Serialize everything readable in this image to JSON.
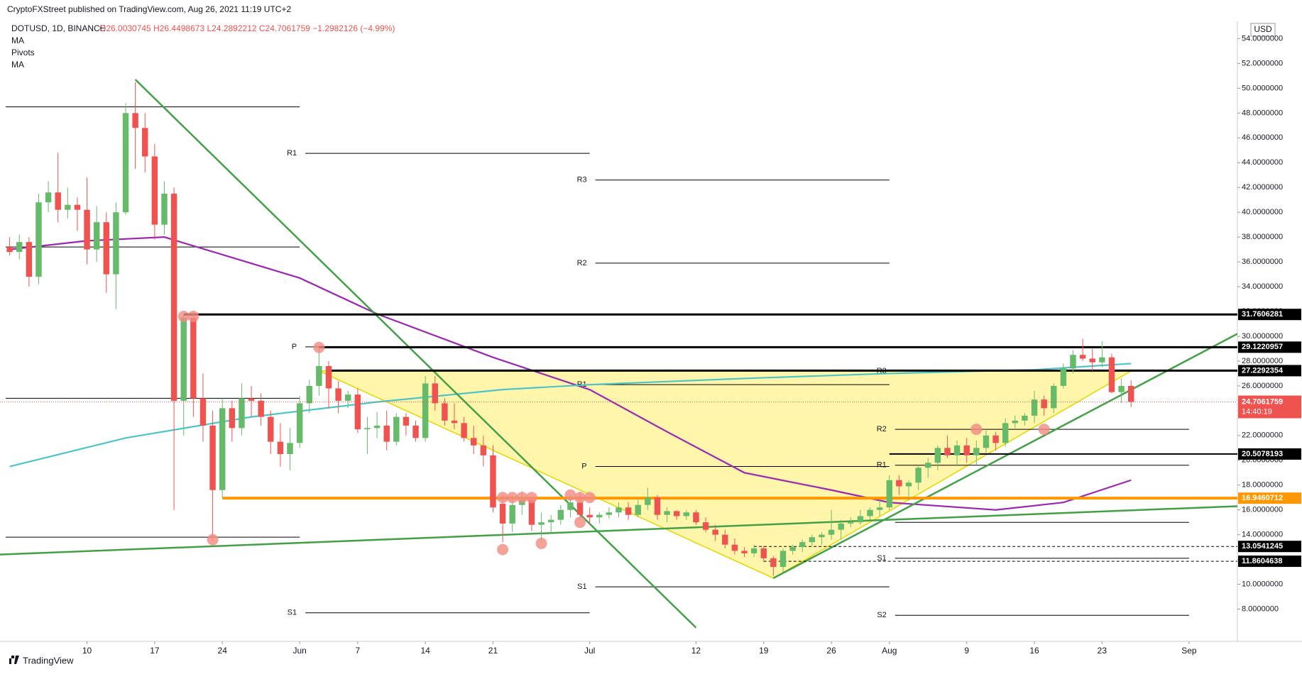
{
  "header": {
    "published": "CryptoFXStreet published on TradingView.com, Aug 26, 2021 11:19 UTC+2",
    "symbol": "DOTUSD, 1D, BINANCE",
    "legend_values": "O26.0030745 H26.4498673 L24.2892212 C24.7061759 −1.2982126 (−4.99%)",
    "indicators": [
      "MA",
      "Pivots",
      "MA"
    ],
    "currency": "USD",
    "brand": "TradingView"
  },
  "chart_data": {
    "type": "candlestick",
    "start": "2021-05-02",
    "up_color": "#66bb6a",
    "down_color": "#ef5350",
    "candles": [
      [
        37.2,
        38.0,
        36.5,
        36.8
      ],
      [
        36.8,
        38.2,
        36.2,
        37.6
      ],
      [
        37.6,
        38.0,
        34.0,
        34.8
      ],
      [
        34.8,
        41.5,
        34.2,
        40.8
      ],
      [
        40.8,
        42.5,
        40.0,
        41.6
      ],
      [
        41.6,
        44.8,
        39.2,
        40.2
      ],
      [
        40.2,
        42.0,
        39.5,
        40.6
      ],
      [
        40.6,
        41.2,
        38.5,
        40.2
      ],
      [
        40.2,
        42.8,
        35.8,
        37.0
      ],
      [
        37.0,
        40.5,
        36.0,
        39.2
      ],
      [
        39.2,
        40.0,
        33.5,
        35.0
      ],
      [
        35.0,
        40.8,
        32.2,
        40.0
      ],
      [
        40.0,
        48.8,
        39.8,
        48.0
      ],
      [
        48.0,
        50.5,
        43.5,
        46.8
      ],
      [
        46.8,
        48.0,
        43.2,
        44.5
      ],
      [
        44.5,
        45.5,
        37.8,
        39.0
      ],
      [
        39.0,
        42.5,
        38.2,
        41.5
      ],
      [
        41.5,
        42.0,
        16.0,
        24.8
      ],
      [
        24.8,
        31.8,
        22.0,
        31.5
      ],
      [
        31.5,
        32.0,
        23.5,
        25.0
      ],
      [
        25.0,
        27.0,
        21.5,
        22.8
      ],
      [
        22.8,
        24.0,
        13.5,
        17.6
      ],
      [
        17.6,
        25.0,
        17.0,
        24.2
      ],
      [
        24.2,
        24.8,
        21.5,
        22.6
      ],
      [
        22.6,
        26.2,
        22.0,
        25.0
      ],
      [
        25.0,
        26.0,
        23.5,
        24.8
      ],
      [
        24.8,
        25.4,
        22.8,
        23.5
      ],
      [
        23.5,
        24.0,
        20.5,
        21.5
      ],
      [
        21.5,
        23.0,
        19.5,
        20.5
      ],
      [
        20.5,
        22.6,
        19.2,
        21.4
      ],
      [
        21.4,
        25.2,
        21.0,
        24.6
      ],
      [
        24.6,
        26.5,
        23.8,
        26.0
      ],
      [
        26.0,
        29.0,
        25.2,
        27.6
      ],
      [
        27.6,
        28.0,
        24.2,
        25.8
      ],
      [
        25.8,
        26.4,
        23.8,
        24.8
      ],
      [
        24.8,
        25.6,
        24.2,
        25.3
      ],
      [
        25.3,
        25.8,
        22.2,
        22.5
      ],
      [
        22.5,
        23.5,
        20.5,
        22.6
      ],
      [
        22.6,
        23.9,
        21.8,
        22.8
      ],
      [
        22.8,
        24.0,
        20.8,
        21.5
      ],
      [
        21.5,
        23.8,
        21.2,
        23.5
      ],
      [
        23.5,
        23.8,
        22.0,
        22.8
      ],
      [
        22.8,
        23.2,
        21.5,
        21.8
      ],
      [
        21.8,
        26.8,
        21.5,
        26.2
      ],
      [
        26.2,
        26.8,
        24.0,
        24.6
      ],
      [
        24.6,
        25.0,
        22.8,
        23.2
      ],
      [
        23.2,
        24.6,
        22.5,
        23.0
      ],
      [
        23.0,
        23.5,
        21.5,
        21.8
      ],
      [
        21.8,
        22.8,
        20.5,
        21.2
      ],
      [
        21.2,
        22.0,
        19.5,
        20.4
      ],
      [
        20.4,
        21.2,
        15.8,
        16.2
      ],
      [
        16.5,
        17.2,
        13.4,
        14.9
      ],
      [
        14.9,
        17.2,
        14.2,
        16.4
      ],
      [
        16.4,
        17.5,
        15.6,
        16.8
      ],
      [
        16.8,
        17.0,
        14.3,
        14.8
      ],
      [
        14.8,
        15.8,
        13.4,
        15.0
      ],
      [
        15.0,
        15.6,
        14.2,
        15.2
      ],
      [
        15.2,
        16.4,
        14.8,
        16.0
      ],
      [
        16.0,
        17.2,
        15.4,
        16.6
      ],
      [
        16.6,
        17.4,
        15.2,
        15.6
      ],
      [
        15.6,
        16.2,
        14.8,
        15.4
      ],
      [
        15.4,
        15.8,
        14.9,
        15.6
      ],
      [
        15.6,
        16.2,
        15.3,
        15.8
      ],
      [
        15.8,
        16.6,
        15.4,
        16.2
      ],
      [
        16.2,
        16.6,
        15.2,
        15.6
      ],
      [
        15.6,
        16.8,
        15.4,
        16.4
      ],
      [
        16.4,
        17.8,
        16.0,
        17.0
      ],
      [
        17.0,
        17.2,
        15.2,
        15.6
      ],
      [
        15.6,
        16.2,
        15.0,
        15.9
      ],
      [
        15.9,
        16.0,
        15.2,
        15.5
      ],
      [
        15.5,
        16.0,
        15.2,
        15.8
      ],
      [
        15.8,
        16.0,
        14.8,
        15.0
      ],
      [
        15.0,
        15.4,
        14.2,
        14.4
      ],
      [
        14.4,
        14.8,
        13.5,
        14.0
      ],
      [
        14.0,
        14.4,
        12.9,
        13.2
      ],
      [
        13.2,
        13.7,
        12.4,
        12.7
      ],
      [
        12.7,
        13.0,
        12.2,
        12.5
      ],
      [
        12.5,
        13.2,
        12.2,
        12.9
      ],
      [
        12.9,
        13.1,
        11.8,
        12.1
      ],
      [
        12.1,
        12.3,
        10.7,
        11.4
      ],
      [
        11.4,
        12.9,
        11.0,
        12.7
      ],
      [
        12.7,
        13.2,
        12.4,
        13.0
      ],
      [
        13.0,
        13.6,
        12.6,
        13.4
      ],
      [
        13.4,
        14.0,
        13.1,
        13.8
      ],
      [
        13.8,
        14.2,
        13.2,
        14.0
      ],
      [
        14.0,
        16.0,
        13.6,
        14.4
      ],
      [
        14.4,
        15.2,
        13.6,
        14.9
      ],
      [
        14.9,
        15.4,
        14.6,
        15.0
      ],
      [
        15.0,
        16.0,
        14.8,
        15.5
      ],
      [
        15.5,
        16.2,
        15.2,
        16.0
      ],
      [
        16.0,
        16.8,
        15.5,
        16.2
      ],
      [
        16.2,
        18.8,
        16.0,
        18.4
      ],
      [
        18.4,
        18.8,
        17.2,
        17.9
      ],
      [
        17.9,
        18.4,
        16.8,
        18.2
      ],
      [
        18.2,
        19.6,
        17.6,
        19.4
      ],
      [
        19.4,
        20.2,
        18.6,
        19.8
      ],
      [
        19.8,
        21.2,
        19.2,
        21.0
      ],
      [
        21.0,
        22.0,
        20.2,
        20.4
      ],
      [
        20.4,
        21.6,
        19.6,
        21.2
      ],
      [
        21.2,
        21.8,
        19.8,
        20.4
      ],
      [
        20.4,
        21.6,
        19.6,
        21.0
      ],
      [
        21.0,
        22.4,
        20.6,
        22.0
      ],
      [
        22.0,
        22.3,
        20.8,
        21.4
      ],
      [
        21.4,
        23.4,
        21.1,
        23.0
      ],
      [
        23.0,
        23.6,
        22.6,
        23.2
      ],
      [
        23.2,
        23.8,
        22.8,
        23.6
      ],
      [
        23.6,
        25.6,
        23.0,
        24.9
      ],
      [
        24.9,
        25.2,
        23.6,
        24.2
      ],
      [
        24.2,
        26.2,
        23.8,
        26.0
      ],
      [
        26.0,
        27.8,
        25.8,
        27.4
      ],
      [
        27.4,
        28.9,
        27.0,
        28.5
      ],
      [
        28.5,
        29.8,
        28.0,
        28.2
      ],
      [
        28.2,
        29.0,
        27.2,
        27.9
      ],
      [
        27.9,
        29.6,
        27.5,
        28.3
      ],
      [
        28.3,
        28.6,
        25.4,
        25.5
      ],
      [
        25.5,
        26.6,
        24.6,
        26.0
      ],
      [
        26.0030745,
        26.4498673,
        24.2892212,
        24.7061759
      ]
    ],
    "moving_averages": [
      {
        "color": "#9c27b0",
        "x": [
          "2021-05-02",
          "2021-05-10",
          "2021-05-18",
          "2021-06-01",
          "2021-06-09",
          "2021-06-21",
          "2021-07-01",
          "2021-07-09",
          "2021-07-17",
          "2021-07-26",
          "2021-08-01",
          "2021-08-12",
          "2021-08-19",
          "2021-08-26"
        ],
        "values": [
          37.0,
          37.7,
          38.0,
          34.7,
          31.8,
          28.3,
          25.7,
          22.3,
          19.0,
          17.6,
          16.6,
          16.0,
          16.6,
          18.4
        ]
      },
      {
        "color": "#4dc4c8",
        "x": [
          "2021-05-02",
          "2021-05-14",
          "2021-05-27",
          "2021-06-09",
          "2021-06-22",
          "2021-07-01",
          "2021-07-17",
          "2021-08-01",
          "2021-08-16",
          "2021-08-26"
        ],
        "values": [
          19.5,
          21.8,
          23.5,
          24.7,
          25.7,
          26.1,
          26.6,
          27.0,
          27.3,
          27.8
        ]
      }
    ],
    "pivots": [
      {
        "value": 48.5,
        "from": "2021-05-01",
        "to": "2021-06-01"
      },
      {
        "value": 37.2,
        "from": "2021-05-01",
        "to": "2021-06-01"
      },
      {
        "value": 25.0,
        "from": "2021-05-01",
        "to": "2021-06-01"
      },
      {
        "value": 13.8,
        "from": "2021-05-01",
        "to": "2021-06-01"
      },
      {
        "label": "R1",
        "value": 44.75,
        "from": "2021-06-01",
        "to": "2021-07-01"
      },
      {
        "label": "P",
        "value": 29.15,
        "from": "2021-06-01",
        "to": "2021-07-01"
      },
      {
        "label": "S1",
        "value": 7.7,
        "from": "2021-06-01",
        "to": "2021-07-01"
      },
      {
        "label": "R3",
        "value": 42.6,
        "from": "2021-07-01",
        "to": "2021-08-01"
      },
      {
        "label": "R2",
        "value": 35.9,
        "from": "2021-07-01",
        "to": "2021-08-01"
      },
      {
        "label": "R1",
        "value": 26.1,
        "from": "2021-07-01",
        "to": "2021-08-01"
      },
      {
        "label": "P",
        "value": 19.5,
        "from": "2021-07-01",
        "to": "2021-08-01"
      },
      {
        "label": "S1",
        "value": 9.8,
        "from": "2021-07-01",
        "to": "2021-08-01"
      },
      {
        "label": "R3",
        "value": 27.2,
        "from": "2021-08-01",
        "to": "2021-09-01"
      },
      {
        "label": "R2",
        "value": 22.5,
        "from": "2021-08-01",
        "to": "2021-09-01"
      },
      {
        "label": "R1",
        "value": 19.6,
        "from": "2021-08-01",
        "to": "2021-09-01"
      },
      {
        "value": 15.0,
        "from": "2021-08-01",
        "to": "2021-09-01"
      },
      {
        "label": "S1",
        "value": 12.1,
        "from": "2021-08-01",
        "to": "2021-09-01"
      },
      {
        "label": "S2",
        "value": 7.5,
        "from": "2021-08-01",
        "to": "2021-09-01"
      }
    ],
    "levels": [
      {
        "value": 31.7606281,
        "from": "2021-05-20",
        "color": "#000000",
        "width": 3
      },
      {
        "value": 29.1220957,
        "from": "2021-06-03",
        "color": "#000000",
        "width": 3
      },
      {
        "value": 27.2292354,
        "from": "2021-06-04",
        "color": "#000000",
        "width": 3
      },
      {
        "value": 20.5078193,
        "from": "2021-08-01",
        "color": "#000000",
        "width": 2
      },
      {
        "value": 16.9460712,
        "from": "2021-05-24",
        "color": "#ff9800",
        "width": 4
      },
      {
        "value": 13.0541245,
        "from": "2021-07-18",
        "color": "#000000",
        "width": 1,
        "dashed": true
      },
      {
        "value": 11.8604638,
        "from": "2021-07-19",
        "color": "#000000",
        "width": 1,
        "dashed": true
      }
    ],
    "trendlines": [
      {
        "color": "#43a047",
        "points": [
          [
            "2021-05-15",
            50.7
          ],
          [
            "2021-07-12",
            6.5
          ]
        ]
      },
      {
        "color": "#43a047",
        "points": [
          [
            "2021-05-01",
            12.4
          ],
          [
            "2021-09-06",
            16.3
          ]
        ]
      },
      {
        "color": "#43a047",
        "points": [
          [
            "2021-07-20",
            10.5
          ],
          [
            "2021-09-06",
            30.2
          ]
        ]
      }
    ],
    "triangle": {
      "fill": "#fff59d",
      "stroke": "#e6d600",
      "points": [
        [
          "2021-06-03",
          27.2
        ],
        [
          "2021-07-20",
          10.5
        ],
        [
          "2021-08-26",
          27.2
        ]
      ]
    },
    "markers": [
      [
        "2021-05-20",
        31.6
      ],
      [
        "2021-05-21",
        31.6
      ],
      [
        "2021-05-23",
        13.6
      ],
      [
        "2021-06-03",
        29.1
      ],
      [
        "2021-06-22",
        17.0
      ],
      [
        "2021-06-23",
        17.0
      ],
      [
        "2021-06-24",
        17.0
      ],
      [
        "2021-06-25",
        17.0
      ],
      [
        "2021-06-22",
        12.8
      ],
      [
        "2021-06-26",
        13.3
      ],
      [
        "2021-06-29",
        17.2
      ],
      [
        "2021-06-30",
        17.0
      ],
      [
        "2021-07-01",
        17.0
      ],
      [
        "2021-06-30",
        15.0
      ],
      [
        "2021-08-10",
        22.5
      ],
      [
        "2021-08-17",
        22.5
      ]
    ],
    "last_price": 24.7061759,
    "countdown": "14:40:19",
    "xlim": [
      "2021-05-01",
      "2021-09-06"
    ],
    "xticks": [
      {
        "value": "2021-05-10",
        "label": "10"
      },
      {
        "value": "2021-05-17",
        "label": "17"
      },
      {
        "value": "2021-05-24",
        "label": "24"
      },
      {
        "value": "2021-06-01",
        "label": "Jun"
      },
      {
        "value": "2021-06-07",
        "label": "7"
      },
      {
        "value": "2021-06-14",
        "label": "14"
      },
      {
        "value": "2021-06-21",
        "label": "21"
      },
      {
        "value": "2021-07-01",
        "label": "Jul"
      },
      {
        "value": "2021-07-12",
        "label": "12"
      },
      {
        "value": "2021-07-19",
        "label": "19"
      },
      {
        "value": "2021-07-26",
        "label": "26"
      },
      {
        "value": "2021-08-01",
        "label": "Aug"
      },
      {
        "value": "2021-08-09",
        "label": "9"
      },
      {
        "value": "2021-08-16",
        "label": "16"
      },
      {
        "value": "2021-08-23",
        "label": "23"
      },
      {
        "value": "2021-09-01",
        "label": "Sep"
      }
    ],
    "ylim": [
      5.4,
      55.4
    ],
    "yticks": [
      {
        "value": 8,
        "label": "8.0000000"
      },
      {
        "value": 10,
        "label": "10.0000000"
      },
      {
        "value": 12,
        "label": "12.0000000"
      },
      {
        "value": 14,
        "label": "14.0000000"
      },
      {
        "value": 16,
        "label": "16.0000000"
      },
      {
        "value": 18,
        "label": "18.0000000"
      },
      {
        "value": 20,
        "label": "20.0000000"
      },
      {
        "value": 22,
        "label": "22.0000000"
      },
      {
        "value": 24,
        "label": "24.0000000"
      },
      {
        "value": 26,
        "label": "26.0000000"
      },
      {
        "value": 28,
        "label": "28.0000000"
      },
      {
        "value": 30,
        "label": "30.0000000"
      },
      {
        "value": 32,
        "label": "32.0000000"
      },
      {
        "value": 34,
        "label": "34.0000000"
      },
      {
        "value": 36,
        "label": "36.0000000"
      },
      {
        "value": 38,
        "label": "38.0000000"
      },
      {
        "value": 40,
        "label": "40.0000000"
      },
      {
        "value": 42,
        "label": "42.0000000"
      },
      {
        "value": 44,
        "label": "44.0000000"
      },
      {
        "value": 46,
        "label": "46.0000000"
      },
      {
        "value": 48,
        "label": "48.0000000"
      },
      {
        "value": 50,
        "label": "50.0000000"
      },
      {
        "value": 52,
        "label": "52.0000000"
      },
      {
        "value": 54,
        "label": "54.0000000"
      }
    ],
    "grid": false
  }
}
